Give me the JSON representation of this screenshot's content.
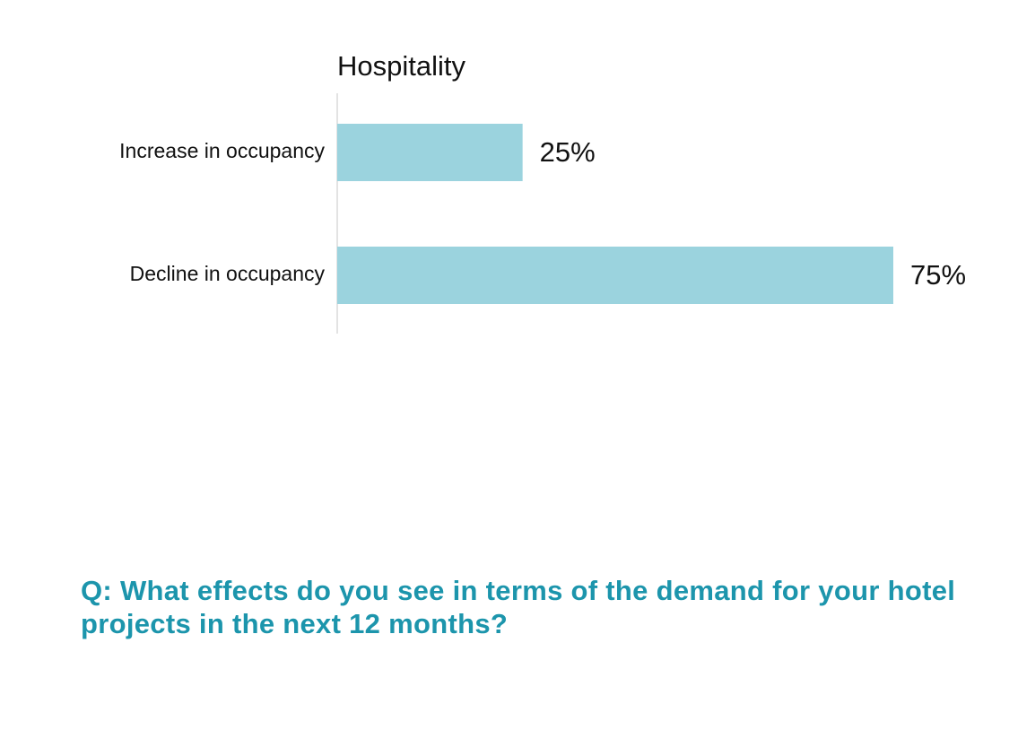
{
  "chart_data": {
    "type": "bar",
    "orientation": "horizontal",
    "title": "Hospitality",
    "categories": [
      "Increase in occupancy",
      "Decline in occupancy"
    ],
    "values": [
      25,
      75
    ],
    "value_labels": [
      "25%",
      "75%"
    ],
    "unit": "%",
    "xlim": [
      0,
      75
    ],
    "grid": false,
    "legend": "none",
    "bar_color": "#9BD3DE",
    "axis_color": "#E3E3E3"
  },
  "question": {
    "text": "Q: What effects do you see in terms of the demand for your hotel projects in the next 12 months?",
    "color": "#1C95AC"
  }
}
